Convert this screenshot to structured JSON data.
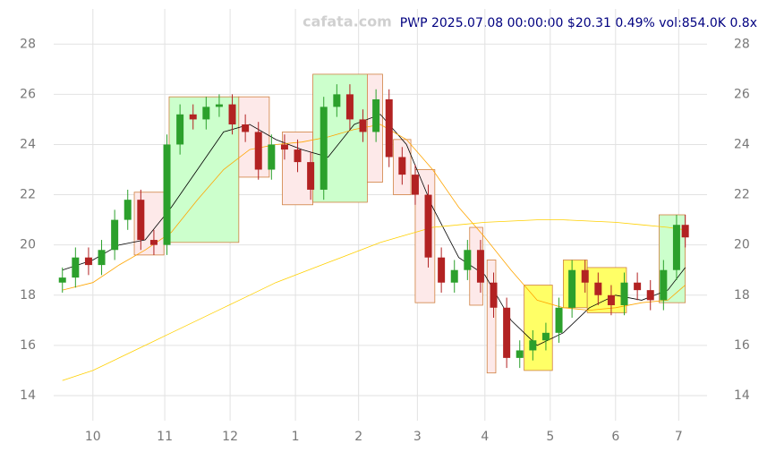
{
  "chart_data": {
    "type": "candlestick",
    "title": "PWP 2025.07.08 00:00:00 $20.31 0.49% vol:854.0K 0.8x",
    "watermark": "cafata.com",
    "xlim": [
      -18,
      282
    ],
    "ylim": [
      13,
      29.4
    ],
    "xticks": [
      {
        "value": 0,
        "label": "10"
      },
      {
        "value": 33,
        "label": "11"
      },
      {
        "value": 63,
        "label": "12"
      },
      {
        "value": 93,
        "label": "1"
      },
      {
        "value": 122,
        "label": "2"
      },
      {
        "value": 149,
        "label": "3"
      },
      {
        "value": 180,
        "label": "4"
      },
      {
        "value": 210,
        "label": "5"
      },
      {
        "value": 240,
        "label": "6"
      },
      {
        "value": 269,
        "label": "7"
      }
    ],
    "yticks": [
      14,
      16,
      18,
      20,
      22,
      24,
      26,
      28
    ],
    "grid": true,
    "up_color": "#2ca02c",
    "down_color": "#b22222",
    "x": [
      -14,
      -8,
      -2,
      4,
      10,
      16,
      22,
      28,
      34,
      40,
      46,
      52,
      58,
      64,
      70,
      76,
      82,
      88,
      94,
      100,
      106,
      112,
      118,
      124,
      130,
      136,
      142,
      148,
      154,
      160,
      166,
      172,
      178,
      184,
      190,
      196,
      202,
      208,
      214,
      220,
      226,
      232,
      238,
      244,
      250,
      256,
      262,
      268,
      272
    ],
    "open": [
      18.5,
      18.7,
      19.5,
      19.2,
      19.8,
      21.0,
      21.8,
      20.2,
      20.0,
      24.0,
      25.2,
      25.0,
      25.5,
      25.6,
      24.8,
      24.5,
      23.0,
      24.0,
      23.8,
      23.3,
      22.2,
      25.5,
      26.0,
      25.0,
      24.5,
      25.8,
      23.5,
      22.8,
      22.0,
      19.5,
      18.5,
      19.0,
      19.8,
      18.5,
      17.5,
      15.5,
      15.8,
      16.2,
      16.5,
      17.5,
      19.0,
      18.5,
      18.0,
      17.6,
      18.5,
      18.2,
      17.8,
      19.0,
      20.8
    ],
    "high": [
      19.1,
      19.9,
      19.9,
      20.2,
      21.4,
      22.2,
      22.2,
      20.6,
      24.4,
      25.6,
      25.6,
      25.9,
      26.0,
      26.0,
      25.2,
      24.9,
      24.4,
      24.4,
      24.2,
      23.7,
      25.9,
      26.4,
      26.4,
      25.4,
      26.2,
      26.2,
      23.9,
      23.2,
      22.4,
      19.9,
      19.4,
      20.2,
      20.2,
      18.9,
      17.9,
      16.2,
      16.6,
      16.9,
      17.9,
      19.4,
      19.4,
      18.9,
      18.4,
      18.9,
      18.9,
      18.6,
      19.4,
      21.2,
      21.2
    ],
    "low": [
      18.1,
      18.3,
      18.8,
      18.8,
      19.4,
      20.6,
      19.8,
      19.6,
      19.6,
      23.6,
      24.6,
      24.6,
      25.1,
      24.4,
      24.1,
      22.6,
      22.6,
      23.4,
      22.9,
      21.8,
      21.8,
      25.1,
      24.6,
      24.1,
      24.1,
      23.1,
      22.4,
      21.6,
      19.1,
      18.1,
      18.1,
      18.6,
      18.1,
      17.1,
      15.1,
      15.1,
      15.4,
      15.8,
      16.1,
      17.1,
      18.1,
      17.6,
      17.2,
      17.2,
      17.8,
      17.4,
      17.4,
      18.6,
      19.9
    ],
    "close": [
      18.7,
      19.5,
      19.2,
      19.8,
      21.0,
      21.8,
      20.2,
      20.0,
      24.0,
      25.2,
      25.0,
      25.5,
      25.6,
      24.8,
      24.5,
      23.0,
      24.0,
      23.8,
      23.3,
      22.2,
      25.5,
      26.0,
      25.0,
      24.5,
      25.8,
      23.5,
      22.8,
      22.0,
      19.5,
      18.5,
      19.0,
      19.8,
      18.5,
      17.5,
      15.5,
      15.8,
      16.2,
      16.5,
      17.5,
      19.0,
      18.5,
      18.0,
      17.6,
      18.5,
      18.2,
      17.8,
      19.0,
      20.8,
      20.3
    ],
    "overlay_x": [
      -14,
      0,
      12,
      24,
      36,
      48,
      60,
      72,
      84,
      96,
      108,
      120,
      132,
      144,
      156,
      168,
      180,
      192,
      204,
      216,
      228,
      240,
      252,
      264,
      272
    ],
    "overlays": [
      {
        "color": "#000000",
        "values": [
          19.0,
          19.4,
          20.0,
          20.2,
          21.5,
          23.0,
          24.5,
          24.8,
          24.2,
          23.8,
          23.5,
          24.8,
          25.2,
          24.0,
          21.5,
          19.5,
          18.8,
          17.0,
          16.0,
          16.5,
          17.5,
          18.0,
          17.8,
          18.2,
          19.1
        ]
      },
      {
        "color": "#ffa500",
        "values": [
          18.2,
          18.5,
          19.2,
          19.8,
          20.5,
          21.8,
          23.0,
          23.8,
          24.0,
          24.1,
          24.3,
          24.6,
          24.8,
          24.2,
          23.0,
          21.5,
          20.3,
          19.0,
          17.8,
          17.5,
          17.4,
          17.5,
          17.7,
          17.8,
          18.4
        ]
      },
      {
        "color": "#ffd000",
        "values": [
          14.6,
          15.0,
          15.5,
          16.0,
          16.5,
          17.0,
          17.5,
          18.0,
          18.5,
          18.9,
          19.3,
          19.7,
          20.1,
          20.4,
          20.7,
          20.8,
          20.9,
          20.95,
          21.0,
          21.0,
          20.95,
          20.9,
          20.8,
          20.7,
          20.6
        ]
      }
    ],
    "ranges": [
      {
        "x0": 19,
        "x1": 32.6,
        "y0": 19.6,
        "y1": 22.1,
        "color": "#fde9e9"
      },
      {
        "x0": 35,
        "x1": 67,
        "y0": 20.1,
        "y1": 25.9,
        "color": "#ccffcc"
      },
      {
        "x0": 67,
        "x1": 81,
        "y0": 22.7,
        "y1": 25.9,
        "color": "#fde9e9"
      },
      {
        "x0": 87,
        "x1": 101,
        "y0": 21.6,
        "y1": 24.5,
        "color": "#fde9e9"
      },
      {
        "x0": 101,
        "x1": 126,
        "y0": 21.7,
        "y1": 26.8,
        "color": "#ccffcc"
      },
      {
        "x0": 126,
        "x1": 133,
        "y0": 22.5,
        "y1": 26.8,
        "color": "#fde9e9"
      },
      {
        "x0": 138,
        "x1": 146,
        "y0": 22.0,
        "y1": 24.2,
        "color": "#fde9e9"
      },
      {
        "x0": 148,
        "x1": 157,
        "y0": 17.7,
        "y1": 23.0,
        "color": "#fde9e9"
      },
      {
        "x0": 173,
        "x1": 179,
        "y0": 17.6,
        "y1": 20.7,
        "color": "#fde9e9"
      },
      {
        "x0": 181,
        "x1": 185,
        "y0": 14.9,
        "y1": 19.4,
        "color": "#fde9e9"
      },
      {
        "x0": 198,
        "x1": 211,
        "y0": 15.0,
        "y1": 18.4,
        "color": "#ffff66"
      },
      {
        "x0": 216,
        "x1": 227,
        "y0": 17.5,
        "y1": 19.4,
        "color": "#ffff66"
      },
      {
        "x0": 227,
        "x1": 245,
        "y0": 17.3,
        "y1": 19.1,
        "color": "#ffff66"
      },
      {
        "x0": 260,
        "x1": 272,
        "y0": 17.7,
        "y1": 21.2,
        "color": "#ccffcc"
      }
    ]
  }
}
